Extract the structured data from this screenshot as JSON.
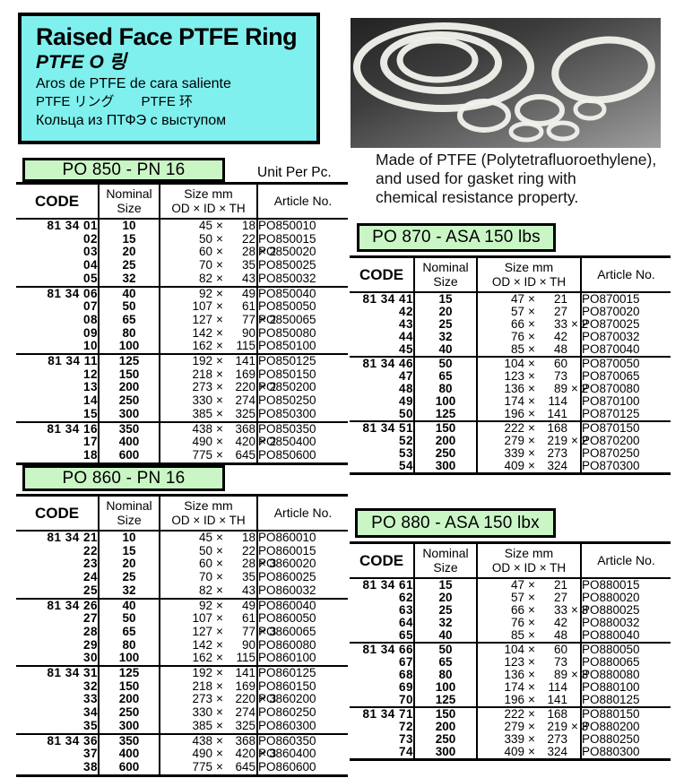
{
  "colors": {
    "title_box_bg": "#7ff0ee",
    "label_bg": "#caf6c6",
    "border": "#000000"
  },
  "header": {
    "title": "Raised Face PTFE Ring",
    "subtitle_korean": "PTFE O 링",
    "subtitle_spanish": "Aros de PTFE de cara saliente",
    "subtitle_jp_cn": "PTFE リング　　PTFE 环",
    "subtitle_russian": "Кольца из ПТФЭ с выступом"
  },
  "photo": {
    "name": "ptfe-rings-photo"
  },
  "description": {
    "lines": [
      "Made of PTFE (Polytetrafluoroethylene),",
      "and used for gasket ring with",
      "chemical resistance property."
    ]
  },
  "unit_label": "Unit Per Pc.",
  "columns": {
    "code": "CODE",
    "nominal": [
      "Nominal",
      "Size"
    ],
    "size": [
      "Size mm",
      "OD × ID × TH"
    ],
    "article": "Article No."
  },
  "tables": [
    {
      "id": "po850",
      "label": "PO 850 - PN 16",
      "groups": [
        {
          "rows": [
            {
              "c": "81 34 01",
              "n": "10",
              "od": "45",
              "id": "18",
              "th": "",
              "a": "PO850010"
            },
            {
              "c": "02",
              "n": "15",
              "od": "50",
              "id": "22",
              "th": "",
              "a": "PO850015"
            },
            {
              "c": "03",
              "n": "20",
              "od": "60",
              "id": "28",
              "th": "× 2",
              "a": "PO850020"
            },
            {
              "c": "04",
              "n": "25",
              "od": "70",
              "id": "35",
              "th": "",
              "a": "PO850025"
            },
            {
              "c": "05",
              "n": "32",
              "od": "82",
              "id": "43",
              "th": "",
              "a": "PO850032"
            }
          ]
        },
        {
          "rows": [
            {
              "c": "81 34 06",
              "n": "40",
              "od": "92",
              "id": "49",
              "th": "",
              "a": "PO850040"
            },
            {
              "c": "07",
              "n": "50",
              "od": "107",
              "id": "61",
              "th": "",
              "a": "PO850050"
            },
            {
              "c": "08",
              "n": "65",
              "od": "127",
              "id": "77",
              "th": "× 2",
              "a": "PO850065"
            },
            {
              "c": "09",
              "n": "80",
              "od": "142",
              "id": "90",
              "th": "",
              "a": "PO850080"
            },
            {
              "c": "10",
              "n": "100",
              "od": "162",
              "id": "115",
              "th": "",
              "a": "PO850100"
            }
          ]
        },
        {
          "rows": [
            {
              "c": "81 34 11",
              "n": "125",
              "od": "192",
              "id": "141",
              "th": "",
              "a": "PO850125"
            },
            {
              "c": "12",
              "n": "150",
              "od": "218",
              "id": "169",
              "th": "",
              "a": "PO850150"
            },
            {
              "c": "13",
              "n": "200",
              "od": "273",
              "id": "220",
              "th": "× 2",
              "a": "PO850200"
            },
            {
              "c": "14",
              "n": "250",
              "od": "330",
              "id": "274",
              "th": "",
              "a": "PO850250"
            },
            {
              "c": "15",
              "n": "300",
              "od": "385",
              "id": "325",
              "th": "",
              "a": "PO850300"
            }
          ]
        },
        {
          "rows": [
            {
              "c": "81 34 16",
              "n": "350",
              "od": "438",
              "id": "368",
              "th": "",
              "a": "PO850350"
            },
            {
              "c": "17",
              "n": "400",
              "od": "490",
              "id": "420",
              "th": "× 2",
              "a": "PO850400"
            },
            {
              "c": "18",
              "n": "600",
              "od": "775",
              "id": "645",
              "th": "",
              "a": "PO850600"
            }
          ]
        }
      ]
    },
    {
      "id": "po860",
      "label": "PO 860 - PN 16",
      "groups": [
        {
          "rows": [
            {
              "c": "81 34 21",
              "n": "10",
              "od": "45",
              "id": "18",
              "th": "",
              "a": "PO860010"
            },
            {
              "c": "22",
              "n": "15",
              "od": "50",
              "id": "22",
              "th": "",
              "a": "PO860015"
            },
            {
              "c": "23",
              "n": "20",
              "od": "60",
              "id": "28",
              "th": "× 3",
              "a": "PO860020"
            },
            {
              "c": "24",
              "n": "25",
              "od": "70",
              "id": "35",
              "th": "",
              "a": "PO860025"
            },
            {
              "c": "25",
              "n": "32",
              "od": "82",
              "id": "43",
              "th": "",
              "a": "PO860032"
            }
          ]
        },
        {
          "rows": [
            {
              "c": "81 34 26",
              "n": "40",
              "od": "92",
              "id": "49",
              "th": "",
              "a": "PO860040"
            },
            {
              "c": "27",
              "n": "50",
              "od": "107",
              "id": "61",
              "th": "",
              "a": "PO860050"
            },
            {
              "c": "28",
              "n": "65",
              "od": "127",
              "id": "77",
              "th": "× 3",
              "a": "PO860065"
            },
            {
              "c": "29",
              "n": "80",
              "od": "142",
              "id": "90",
              "th": "",
              "a": "PO860080"
            },
            {
              "c": "30",
              "n": "100",
              "od": "162",
              "id": "115",
              "th": "",
              "a": "PO860100"
            }
          ]
        },
        {
          "rows": [
            {
              "c": "81 34 31",
              "n": "125",
              "od": "192",
              "id": "141",
              "th": "",
              "a": "PO860125"
            },
            {
              "c": "32",
              "n": "150",
              "od": "218",
              "id": "169",
              "th": "",
              "a": "PO860150"
            },
            {
              "c": "33",
              "n": "200",
              "od": "273",
              "id": "220",
              "th": "× 3",
              "a": "PO860200"
            },
            {
              "c": "34",
              "n": "250",
              "od": "330",
              "id": "274",
              "th": "",
              "a": "PO860250"
            },
            {
              "c": "35",
              "n": "300",
              "od": "385",
              "id": "325",
              "th": "",
              "a": "PO860300"
            }
          ]
        },
        {
          "rows": [
            {
              "c": "81 34 36",
              "n": "350",
              "od": "438",
              "id": "368",
              "th": "",
              "a": "PO860350"
            },
            {
              "c": "37",
              "n": "400",
              "od": "490",
              "id": "420",
              "th": "× 3",
              "a": "PO860400"
            },
            {
              "c": "38",
              "n": "600",
              "od": "775",
              "id": "645",
              "th": "",
              "a": "PO860600"
            }
          ]
        }
      ]
    },
    {
      "id": "po870",
      "label": "PO 870 - ASA 150 lbs",
      "groups": [
        {
          "rows": [
            {
              "c": "81 34 41",
              "n": "15",
              "od": "47",
              "id": "21",
              "th": "",
              "a": "PO870015"
            },
            {
              "c": "42",
              "n": "20",
              "od": "57",
              "id": "27",
              "th": "",
              "a": "PO870020"
            },
            {
              "c": "43",
              "n": "25",
              "od": "66",
              "id": "33",
              "th": "× 2",
              "a": "PO870025"
            },
            {
              "c": "44",
              "n": "32",
              "od": "76",
              "id": "42",
              "th": "",
              "a": "PO870032"
            },
            {
              "c": "45",
              "n": "40",
              "od": "85",
              "id": "48",
              "th": "",
              "a": "PO870040"
            }
          ]
        },
        {
          "rows": [
            {
              "c": "81 34 46",
              "n": "50",
              "od": "104",
              "id": "60",
              "th": "",
              "a": "PO870050"
            },
            {
              "c": "47",
              "n": "65",
              "od": "123",
              "id": "73",
              "th": "",
              "a": "PO870065"
            },
            {
              "c": "48",
              "n": "80",
              "od": "136",
              "id": "89",
              "th": "× 2",
              "a": "PO870080"
            },
            {
              "c": "49",
              "n": "100",
              "od": "174",
              "id": "114",
              "th": "",
              "a": "PO870100"
            },
            {
              "c": "50",
              "n": "125",
              "od": "196",
              "id": "141",
              "th": "",
              "a": "PO870125"
            }
          ]
        },
        {
          "rows": [
            {
              "c": "81 34 51",
              "n": "150",
              "od": "222",
              "id": "168",
              "th": "",
              "a": "PO870150"
            },
            {
              "c": "52",
              "n": "200",
              "od": "279",
              "id": "219",
              "th": "× 2",
              "a": "PO870200"
            },
            {
              "c": "53",
              "n": "250",
              "od": "339",
              "id": "273",
              "th": "",
              "a": "PO870250"
            },
            {
              "c": "54",
              "n": "300",
              "od": "409",
              "id": "324",
              "th": "",
              "a": "PO870300"
            }
          ]
        }
      ]
    },
    {
      "id": "po880",
      "label": "PO 880 - ASA 150 lbx",
      "groups": [
        {
          "rows": [
            {
              "c": "81 34 61",
              "n": "15",
              "od": "47",
              "id": "21",
              "th": "",
              "a": "PO880015"
            },
            {
              "c": "62",
              "n": "20",
              "od": "57",
              "id": "27",
              "th": "",
              "a": "PO880020"
            },
            {
              "c": "63",
              "n": "25",
              "od": "66",
              "id": "33",
              "th": "× 3",
              "a": "PO880025"
            },
            {
              "c": "64",
              "n": "32",
              "od": "76",
              "id": "42",
              "th": "",
              "a": "PO880032"
            },
            {
              "c": "65",
              "n": "40",
              "od": "85",
              "id": "48",
              "th": "",
              "a": "PO880040"
            }
          ]
        },
        {
          "rows": [
            {
              "c": "81 34 66",
              "n": "50",
              "od": "104",
              "id": "60",
              "th": "",
              "a": "PO880050"
            },
            {
              "c": "67",
              "n": "65",
              "od": "123",
              "id": "73",
              "th": "",
              "a": "PO880065"
            },
            {
              "c": "68",
              "n": "80",
              "od": "136",
              "id": "89",
              "th": "× 3",
              "a": "PO880080"
            },
            {
              "c": "69",
              "n": "100",
              "od": "174",
              "id": "114",
              "th": "",
              "a": "PO880100"
            },
            {
              "c": "70",
              "n": "125",
              "od": "196",
              "id": "141",
              "th": "",
              "a": "PO880125"
            }
          ]
        },
        {
          "rows": [
            {
              "c": "81 34 71",
              "n": "150",
              "od": "222",
              "id": "168",
              "th": "",
              "a": "PO880150"
            },
            {
              "c": "72",
              "n": "200",
              "od": "279",
              "id": "219",
              "th": "× 3",
              "a": "PO880200"
            },
            {
              "c": "73",
              "n": "250",
              "od": "339",
              "id": "273",
              "th": "",
              "a": "PO880250"
            },
            {
              "c": "74",
              "n": "300",
              "od": "409",
              "id": "324",
              "th": "",
              "a": "PO880300"
            }
          ]
        }
      ]
    }
  ]
}
